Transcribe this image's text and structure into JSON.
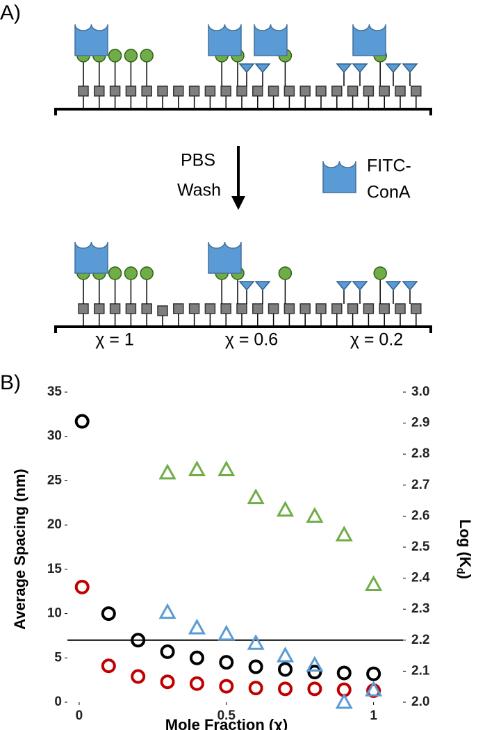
{
  "panel_labels": [
    "A)",
    "B)"
  ],
  "diagram": {
    "wash_label": [
      "PBS",
      "Wash"
    ],
    "legend_label": [
      "FITC-",
      "ConA"
    ],
    "chi_labels": [
      "χ = 1",
      "χ = 0.6",
      "χ = 0.2"
    ]
  },
  "chart_data": {
    "type": "scatter",
    "xlabel": "Mole Fraction (χ)",
    "ylabel": "Average Spacing (nm)",
    "y2label": [
      "Log (K",
      "d",
      ")"
    ],
    "xlim": [
      -0.04,
      1.1
    ],
    "xticks": [
      0,
      0.5,
      1
    ],
    "ylim": [
      0,
      35
    ],
    "yticks": [
      0,
      5,
      10,
      15,
      20,
      25,
      30,
      35
    ],
    "y2lim": [
      2,
      3
    ],
    "y2ticks": [
      {
        "value": 2,
        "label": "2.0"
      },
      2.1,
      2.2,
      2.3,
      2.4,
      2.5,
      2.6,
      2.7,
      2.8,
      2.9,
      {
        "value": 3,
        "label": "3.0"
      }
    ],
    "reference_line": {
      "value": 2.2,
      "axis": "y2",
      "color": "#000000"
    },
    "series": [
      {
        "color": "#000000",
        "marker": "circle",
        "axis": "y",
        "x": [
          0.01,
          0.1,
          0.2,
          0.3,
          0.4,
          0.5,
          0.6,
          0.7,
          0.8,
          0.9,
          1
        ],
        "values": [
          31.7,
          10,
          7,
          5.7,
          5,
          4.5,
          4,
          3.7,
          3.4,
          3.3,
          3.2
        ]
      },
      {
        "color": "#c00000",
        "marker": "circle",
        "axis": "y",
        "x": [
          0.01,
          0.1,
          0.2,
          0.3,
          0.4,
          0.5,
          0.6,
          0.7,
          0.8,
          0.9,
          1
        ],
        "values": [
          13,
          4.1,
          2.9,
          2.3,
          2.1,
          1.8,
          1.6,
          1.5,
          1.5,
          1.4,
          1.3
        ]
      },
      {
        "color": "#5b9bd5",
        "marker": "triangle",
        "axis": "y2",
        "x": [
          0.3,
          0.4,
          0.5,
          0.6,
          0.7,
          0.8,
          0.9,
          1
        ],
        "values": [
          2.29,
          2.24,
          2.22,
          2.19,
          2.15,
          2.12,
          2.0,
          2.04
        ]
      },
      {
        "color": "#70ad47",
        "marker": "triangle",
        "axis": "y2",
        "x": [
          0.3,
          0.4,
          0.5,
          0.6,
          0.7,
          0.8,
          0.9,
          1
        ],
        "values": [
          2.74,
          2.75,
          2.75,
          2.66,
          2.62,
          2.6,
          2.54,
          2.38
        ]
      }
    ]
  }
}
